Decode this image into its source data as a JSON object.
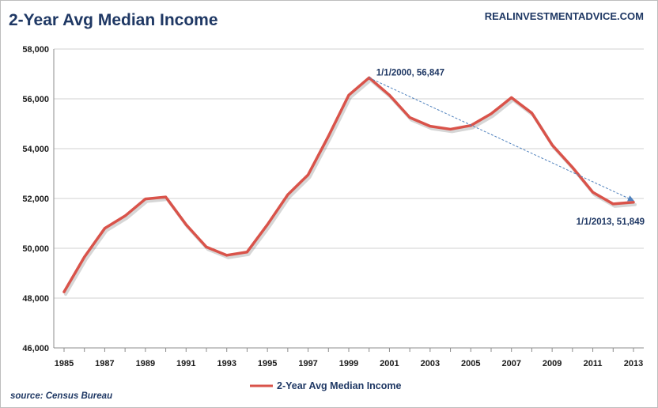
{
  "chart_data": {
    "type": "line",
    "title": "2-Year Avg Median Income",
    "x": [
      1985,
      1986,
      1987,
      1988,
      1989,
      1990,
      1991,
      1992,
      1993,
      1994,
      1995,
      1996,
      1997,
      1998,
      1999,
      2000,
      2001,
      2002,
      2003,
      2004,
      2005,
      2006,
      2007,
      2008,
      2009,
      2010,
      2011,
      2012,
      2013
    ],
    "x_ticks": [
      "1985",
      "1987",
      "1989",
      "1991",
      "1993",
      "1995",
      "1997",
      "1999",
      "2001",
      "2003",
      "2005",
      "2007",
      "2009",
      "2011",
      "2013"
    ],
    "ylim": [
      46000,
      58000
    ],
    "y_ticks": [
      "46,000",
      "48,000",
      "50,000",
      "52,000",
      "54,000",
      "56,000",
      "58,000"
    ],
    "grid": "horizontal",
    "legend_position": "bottom-center",
    "series": [
      {
        "name": "2-Year Avg Median Income",
        "color": "#d9534a",
        "values": [
          48250,
          49650,
          50800,
          51300,
          51980,
          52060,
          50950,
          50050,
          49720,
          49850,
          50950,
          52150,
          52950,
          54500,
          56150,
          56847,
          56150,
          55250,
          54900,
          54780,
          54930,
          55400,
          56050,
          55430,
          54150,
          53250,
          52250,
          51780,
          51849
        ]
      }
    ],
    "trend_line": {
      "from": [
        2000,
        56847
      ],
      "to": [
        2013,
        51849
      ],
      "color": "#4f81bd",
      "style": "dashed-arrow"
    },
    "annotations": [
      {
        "text": "1/1/2000, 56,847",
        "x": 2000,
        "y": 56847
      },
      {
        "text": "1/1/2013, 51,849",
        "x": 2013,
        "y": 51849
      }
    ]
  },
  "header": {
    "title": "2-Year Avg Median Income",
    "brand": "REALINVESTMENTADVICE.COM"
  },
  "legend": {
    "label": "2-Year Avg Median Income"
  },
  "footer": {
    "source": "source: Census Bureau"
  }
}
